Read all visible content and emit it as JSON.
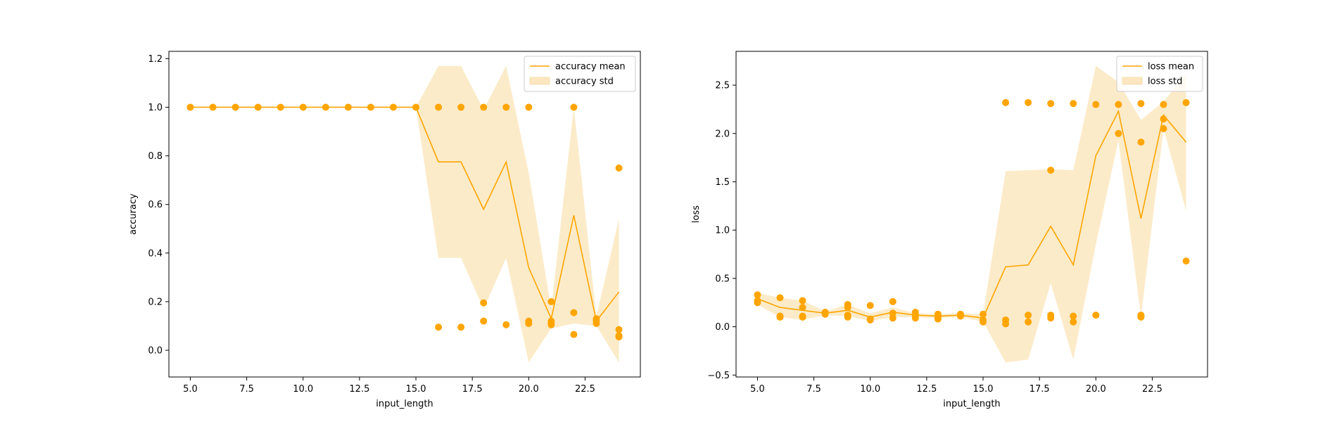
{
  "chart_data": [
    {
      "type": "line",
      "xlabel": "input_length",
      "ylabel": "accuracy",
      "xlim": [
        4.05,
        24.95
      ],
      "ylim": [
        -0.11,
        1.23
      ],
      "xticks": [
        5.0,
        7.5,
        10.0,
        12.5,
        15.0,
        17.5,
        20.0,
        22.5
      ],
      "xtick_labels": [
        "5.0",
        "7.5",
        "10.0",
        "12.5",
        "15.0",
        "17.5",
        "20.0",
        "22.5"
      ],
      "yticks": [
        0.0,
        0.2,
        0.4,
        0.6,
        0.8,
        1.0,
        1.2
      ],
      "ytick_labels": [
        "0.0",
        "0.2",
        "0.4",
        "0.6",
        "0.8",
        "1.0",
        "1.2"
      ],
      "legend_placement": "top-right",
      "color": "#FFA500",
      "band_color": "#FCE7C0",
      "series": [
        {
          "name": "accuracy mean",
          "x": [
            5,
            6,
            7,
            8,
            9,
            10,
            11,
            12,
            13,
            14,
            15,
            16,
            17,
            18,
            19,
            20,
            21,
            22,
            23,
            24
          ],
          "values": [
            1.0,
            1.0,
            1.0,
            1.0,
            1.0,
            1.0,
            1.0,
            1.0,
            1.0,
            1.0,
            1.0,
            0.775,
            0.775,
            0.58,
            0.775,
            0.34,
            0.13,
            0.555,
            0.12,
            0.24
          ]
        }
      ],
      "band": {
        "name": "accuracy std",
        "lower": [
          1.0,
          1.0,
          1.0,
          1.0,
          1.0,
          1.0,
          1.0,
          1.0,
          1.0,
          1.0,
          1.0,
          0.38,
          0.38,
          0.17,
          0.38,
          -0.05,
          0.09,
          0.11,
          0.1,
          -0.05
        ],
        "upper": [
          1.0,
          1.0,
          1.0,
          1.0,
          1.0,
          1.0,
          1.0,
          1.0,
          1.0,
          1.0,
          1.0,
          1.17,
          1.17,
          0.99,
          1.17,
          0.73,
          0.17,
          1.0,
          0.14,
          0.54
        ]
      },
      "scatter": [
        [
          5,
          1.0
        ],
        [
          6,
          1.0
        ],
        [
          7,
          1.0
        ],
        [
          8,
          1.0
        ],
        [
          9,
          1.0
        ],
        [
          10,
          1.0
        ],
        [
          11,
          1.0
        ],
        [
          12,
          1.0
        ],
        [
          13,
          1.0
        ],
        [
          14,
          1.0
        ],
        [
          15,
          1.0
        ],
        [
          16,
          1.0
        ],
        [
          16,
          0.095
        ],
        [
          17,
          1.0
        ],
        [
          17,
          0.095
        ],
        [
          18,
          1.0
        ],
        [
          18,
          0.195
        ],
        [
          18,
          0.12
        ],
        [
          19,
          1.0
        ],
        [
          19,
          0.105
        ],
        [
          20,
          1.0
        ],
        [
          20,
          0.12
        ],
        [
          20,
          0.11
        ],
        [
          21,
          0.2
        ],
        [
          21,
          0.12
        ],
        [
          21,
          0.11
        ],
        [
          21,
          0.105
        ],
        [
          22,
          1.0
        ],
        [
          22,
          0.155
        ],
        [
          22,
          0.065
        ],
        [
          23,
          0.13
        ],
        [
          23,
          0.12
        ],
        [
          23,
          0.11
        ],
        [
          24,
          0.75
        ],
        [
          24,
          0.085
        ],
        [
          24,
          0.06
        ],
        [
          24,
          0.055
        ]
      ]
    },
    {
      "type": "line",
      "xlabel": "input_length",
      "ylabel": "loss",
      "xlim": [
        4.05,
        24.95
      ],
      "ylim": [
        -0.52,
        2.85
      ],
      "xticks": [
        5.0,
        7.5,
        10.0,
        12.5,
        15.0,
        17.5,
        20.0,
        22.5
      ],
      "xtick_labels": [
        "5.0",
        "7.5",
        "10.0",
        "12.5",
        "15.0",
        "17.5",
        "20.0",
        "22.5"
      ],
      "yticks": [
        -0.5,
        0.0,
        0.5,
        1.0,
        1.5,
        2.0,
        2.5
      ],
      "ytick_labels": [
        "−0.5",
        "0.0",
        "0.5",
        "1.0",
        "1.5",
        "2.0",
        "2.5"
      ],
      "legend_placement": "top-right",
      "color": "#FFA500",
      "band_color": "#FCE7C0",
      "series": [
        {
          "name": "loss mean",
          "x": [
            5,
            6,
            7,
            8,
            9,
            10,
            11,
            12,
            13,
            14,
            15,
            16,
            17,
            18,
            19,
            20,
            21,
            22,
            23,
            24
          ],
          "values": [
            0.29,
            0.2,
            0.17,
            0.14,
            0.17,
            0.1,
            0.15,
            0.12,
            0.11,
            0.12,
            0.09,
            0.62,
            0.64,
            1.04,
            0.64,
            1.77,
            2.23,
            1.12,
            2.19,
            1.91
          ]
        }
      ],
      "band": {
        "name": "loss std",
        "lower": [
          0.23,
          0.1,
          0.07,
          0.12,
          0.11,
          0.06,
          0.1,
          0.1,
          0.09,
          0.1,
          0.05,
          -0.37,
          -0.34,
          0.45,
          -0.34,
          0.85,
          1.93,
          0.1,
          2.05,
          1.2
        ],
        "upper": [
          0.35,
          0.3,
          0.27,
          0.16,
          0.23,
          0.14,
          0.2,
          0.14,
          0.13,
          0.14,
          0.13,
          1.61,
          1.62,
          1.63,
          1.62,
          2.7,
          2.53,
          2.14,
          2.33,
          2.62
        ]
      },
      "scatter": [
        [
          5,
          0.33
        ],
        [
          5,
          0.27
        ],
        [
          5,
          0.25
        ],
        [
          6,
          0.3
        ],
        [
          6,
          0.11
        ],
        [
          6,
          0.1
        ],
        [
          7,
          0.27
        ],
        [
          7,
          0.2
        ],
        [
          7,
          0.11
        ],
        [
          7,
          0.1
        ],
        [
          8,
          0.15
        ],
        [
          8,
          0.13
        ],
        [
          9,
          0.23
        ],
        [
          9,
          0.2
        ],
        [
          9,
          0.12
        ],
        [
          9,
          0.1
        ],
        [
          10,
          0.22
        ],
        [
          10,
          0.08
        ],
        [
          10,
          0.07
        ],
        [
          11,
          0.26
        ],
        [
          11,
          0.14
        ],
        [
          11,
          0.09
        ],
        [
          12,
          0.15
        ],
        [
          12,
          0.12
        ],
        [
          12,
          0.09
        ],
        [
          13,
          0.13
        ],
        [
          13,
          0.1
        ],
        [
          13,
          0.08
        ],
        [
          14,
          0.13
        ],
        [
          14,
          0.11
        ],
        [
          15,
          0.13
        ],
        [
          15,
          0.07
        ],
        [
          15,
          0.05
        ],
        [
          16,
          2.32
        ],
        [
          16,
          0.07
        ],
        [
          16,
          0.03
        ],
        [
          17,
          2.32
        ],
        [
          17,
          0.12
        ],
        [
          17,
          0.05
        ],
        [
          18,
          2.31
        ],
        [
          18,
          1.62
        ],
        [
          18,
          0.12
        ],
        [
          18,
          0.09
        ],
        [
          19,
          2.31
        ],
        [
          19,
          0.11
        ],
        [
          19,
          0.05
        ],
        [
          20,
          2.3
        ],
        [
          20,
          0.12
        ],
        [
          21,
          2.3
        ],
        [
          21,
          2.0
        ],
        [
          22,
          2.31
        ],
        [
          22,
          1.91
        ],
        [
          22,
          0.12
        ],
        [
          22,
          0.1
        ],
        [
          23,
          2.3
        ],
        [
          23,
          2.15
        ],
        [
          23,
          2.05
        ],
        [
          24,
          2.32
        ],
        [
          24,
          0.68
        ]
      ]
    }
  ]
}
